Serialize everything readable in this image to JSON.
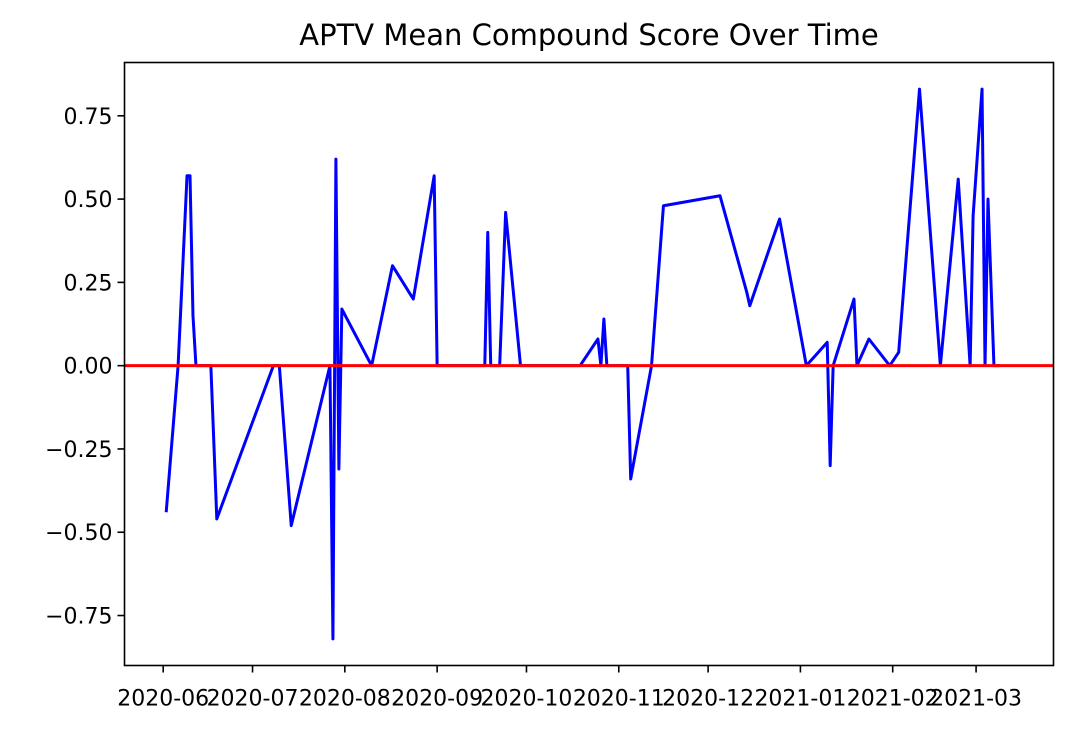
{
  "chart_data": {
    "type": "line",
    "title": "APTV Mean Compound Score Over Time",
    "xlabel": "",
    "ylabel": "",
    "grid": false,
    "xlim": [
      "2020-05-19",
      "2021-03-27"
    ],
    "ylim": [
      -0.9,
      0.91
    ],
    "x_ticks": [
      {
        "date": "2020-06-01",
        "label": "2020-06"
      },
      {
        "date": "2020-07-01",
        "label": "2020-07"
      },
      {
        "date": "2020-08-01",
        "label": "2020-08"
      },
      {
        "date": "2020-09-01",
        "label": "2020-09"
      },
      {
        "date": "2020-10-01",
        "label": "2020-10"
      },
      {
        "date": "2020-11-01",
        "label": "2020-11"
      },
      {
        "date": "2020-12-01",
        "label": "2020-12"
      },
      {
        "date": "2021-01-01",
        "label": "2021-01"
      },
      {
        "date": "2021-02-01",
        "label": "2021-02"
      },
      {
        "date": "2021-03-01",
        "label": "2021-03"
      }
    ],
    "y_ticks": [
      {
        "value": 0.75,
        "label": "0.75"
      },
      {
        "value": 0.5,
        "label": "0.50"
      },
      {
        "value": 0.25,
        "label": "0.25"
      },
      {
        "value": 0.0,
        "label": "0.00"
      },
      {
        "value": -0.25,
        "label": "−0.25"
      },
      {
        "value": -0.5,
        "label": "−0.50"
      },
      {
        "value": -0.75,
        "label": "−0.75"
      }
    ],
    "series": [
      {
        "color": "#0000ff",
        "points": [
          {
            "x": "2020-06-02",
            "y": -0.44
          },
          {
            "x": "2020-06-06",
            "y": 0.0
          },
          {
            "x": "2020-06-09",
            "y": 0.57
          },
          {
            "x": "2020-06-10",
            "y": 0.57
          },
          {
            "x": "2020-06-11",
            "y": 0.15
          },
          {
            "x": "2020-06-12",
            "y": 0.0
          },
          {
            "x": "2020-06-17",
            "y": 0.0
          },
          {
            "x": "2020-06-19",
            "y": -0.46
          },
          {
            "x": "2020-07-08",
            "y": 0.0
          },
          {
            "x": "2020-07-10",
            "y": 0.0
          },
          {
            "x": "2020-07-14",
            "y": -0.48
          },
          {
            "x": "2020-07-27",
            "y": 0.0
          },
          {
            "x": "2020-07-28",
            "y": -0.82
          },
          {
            "x": "2020-07-29",
            "y": 0.62
          },
          {
            "x": "2020-07-30",
            "y": -0.31
          },
          {
            "x": "2020-07-31",
            "y": 0.17
          },
          {
            "x": "2020-08-10",
            "y": 0.0
          },
          {
            "x": "2020-08-17",
            "y": 0.3
          },
          {
            "x": "2020-08-24",
            "y": 0.2
          },
          {
            "x": "2020-08-31",
            "y": 0.57
          },
          {
            "x": "2020-09-01",
            "y": 0.0
          },
          {
            "x": "2020-09-17",
            "y": 0.0
          },
          {
            "x": "2020-09-18",
            "y": 0.4
          },
          {
            "x": "2020-09-19",
            "y": 0.0
          },
          {
            "x": "2020-09-22",
            "y": 0.0
          },
          {
            "x": "2020-09-24",
            "y": 0.46
          },
          {
            "x": "2020-09-29",
            "y": 0.0
          },
          {
            "x": "2020-10-19",
            "y": 0.0
          },
          {
            "x": "2020-10-25",
            "y": 0.08
          },
          {
            "x": "2020-10-26",
            "y": 0.0
          },
          {
            "x": "2020-10-27",
            "y": 0.14
          },
          {
            "x": "2020-10-28",
            "y": 0.0
          },
          {
            "x": "2020-11-04",
            "y": 0.0
          },
          {
            "x": "2020-11-05",
            "y": -0.34
          },
          {
            "x": "2020-11-12",
            "y": 0.0
          },
          {
            "x": "2020-11-16",
            "y": 0.48
          },
          {
            "x": "2020-12-05",
            "y": 0.51
          },
          {
            "x": "2020-12-14",
            "y": 0.22
          },
          {
            "x": "2020-12-15",
            "y": 0.18
          },
          {
            "x": "2020-12-25",
            "y": 0.44
          },
          {
            "x": "2021-01-03",
            "y": 0.0
          },
          {
            "x": "2021-01-10",
            "y": 0.07
          },
          {
            "x": "2021-01-11",
            "y": -0.3
          },
          {
            "x": "2021-01-12",
            "y": 0.0
          },
          {
            "x": "2021-01-19",
            "y": 0.2
          },
          {
            "x": "2021-01-20",
            "y": 0.0
          },
          {
            "x": "2021-01-24",
            "y": 0.08
          },
          {
            "x": "2021-01-31",
            "y": 0.0
          },
          {
            "x": "2021-02-03",
            "y": 0.04
          },
          {
            "x": "2021-02-10",
            "y": 0.83
          },
          {
            "x": "2021-02-17",
            "y": 0.0
          },
          {
            "x": "2021-02-23",
            "y": 0.56
          },
          {
            "x": "2021-02-27",
            "y": 0.0
          },
          {
            "x": "2021-02-28",
            "y": 0.45
          },
          {
            "x": "2021-03-03",
            "y": 0.83
          },
          {
            "x": "2021-03-04",
            "y": 0.0
          },
          {
            "x": "2021-03-05",
            "y": 0.5
          },
          {
            "x": "2021-03-07",
            "y": 0.0
          },
          {
            "x": "2021-03-09",
            "y": 0.0
          }
        ]
      }
    ],
    "reference_line": {
      "y": 0.0,
      "color": "#ff0000"
    }
  }
}
